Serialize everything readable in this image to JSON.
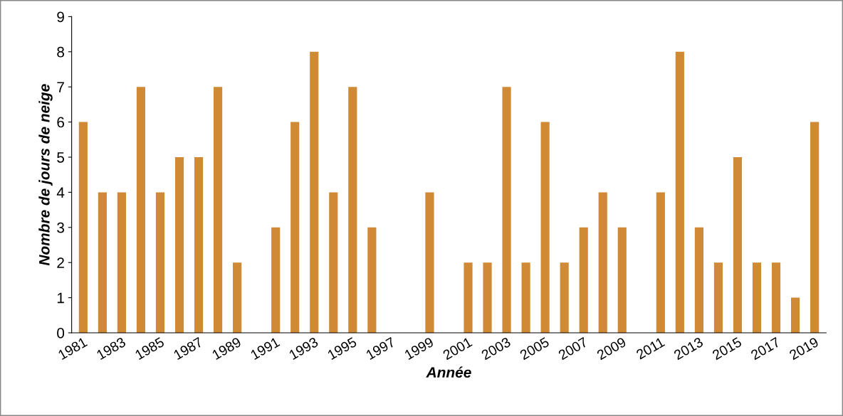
{
  "chart_data": {
    "type": "bar",
    "xlabel": "Année",
    "ylabel": "Nombre de jours de neige",
    "categories": [
      "1981",
      null,
      "1983",
      null,
      "1985",
      null,
      "1987",
      null,
      "1989",
      null,
      "1991",
      null,
      "1993",
      null,
      "1995",
      null,
      "1997",
      null,
      "1999",
      null,
      "2001",
      null,
      "2003",
      null,
      "2005",
      null,
      "2007",
      null,
      "2009",
      null,
      "2011",
      null,
      "2013",
      null,
      "2015",
      null,
      "2017",
      null,
      "2019"
    ],
    "values": [
      6,
      4,
      4,
      7,
      4,
      5,
      5,
      7,
      2,
      0,
      3,
      6,
      8,
      4,
      7,
      3,
      0,
      0,
      4,
      0,
      2,
      2,
      7,
      2,
      6,
      2,
      3,
      4,
      3,
      0,
      4,
      8,
      3,
      2,
      5,
      2,
      2,
      1,
      6
    ],
    "color": "#d08a35",
    "ylim": [
      0,
      9
    ],
    "yticks": [
      0,
      1,
      2,
      3,
      4,
      5,
      6,
      7,
      8,
      9
    ],
    "grid": false,
    "legend": false
  }
}
